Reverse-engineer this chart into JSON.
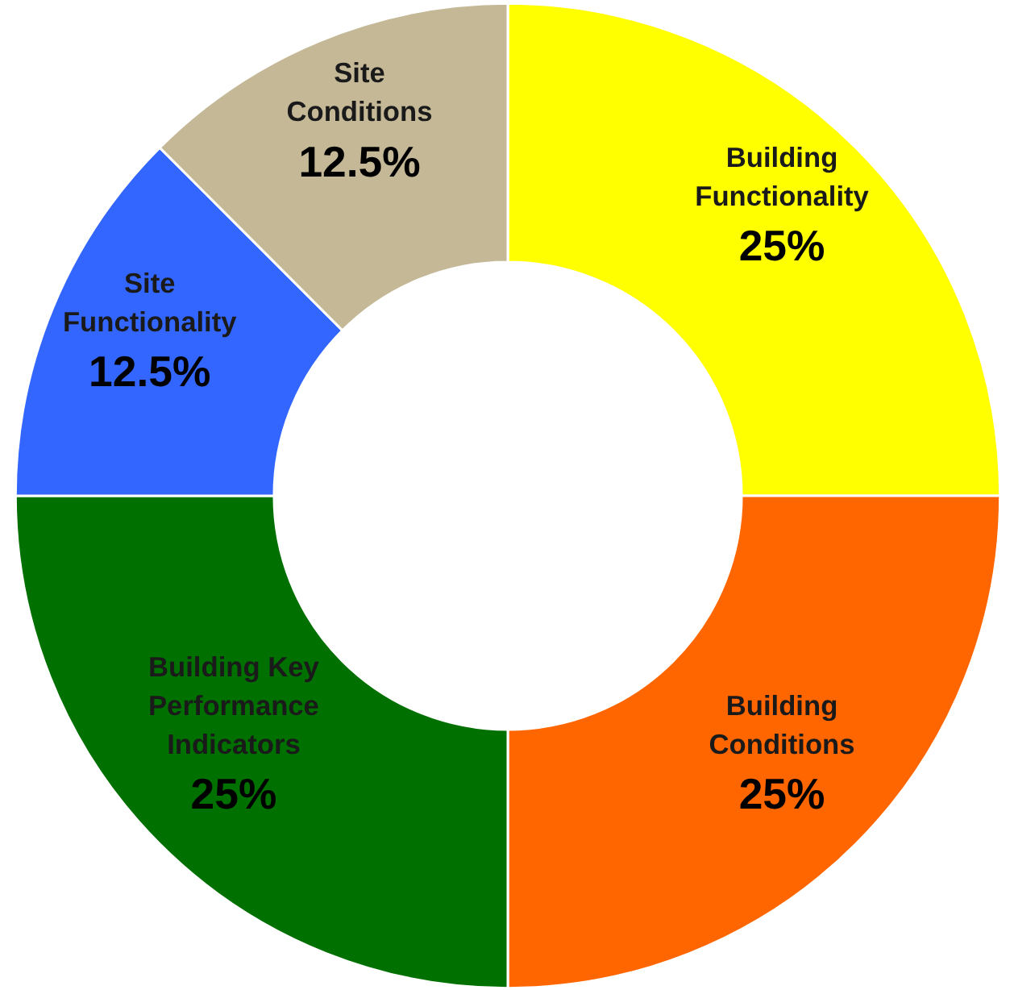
{
  "chart_data": {
    "type": "donut",
    "categories": [
      "Building Functionality",
      "Building Conditions",
      "Building Key Performance Indicators",
      "Site Functionality",
      "Site Conditions"
    ],
    "values": [
      25,
      25,
      25,
      12.5,
      12.5
    ],
    "colors": [
      "#ffff00",
      "#ff6600",
      "#007000",
      "#3366ff",
      "#c4b896"
    ],
    "value_labels": [
      "25%",
      "25%",
      "25%",
      "12.5%",
      "12.5%"
    ]
  }
}
